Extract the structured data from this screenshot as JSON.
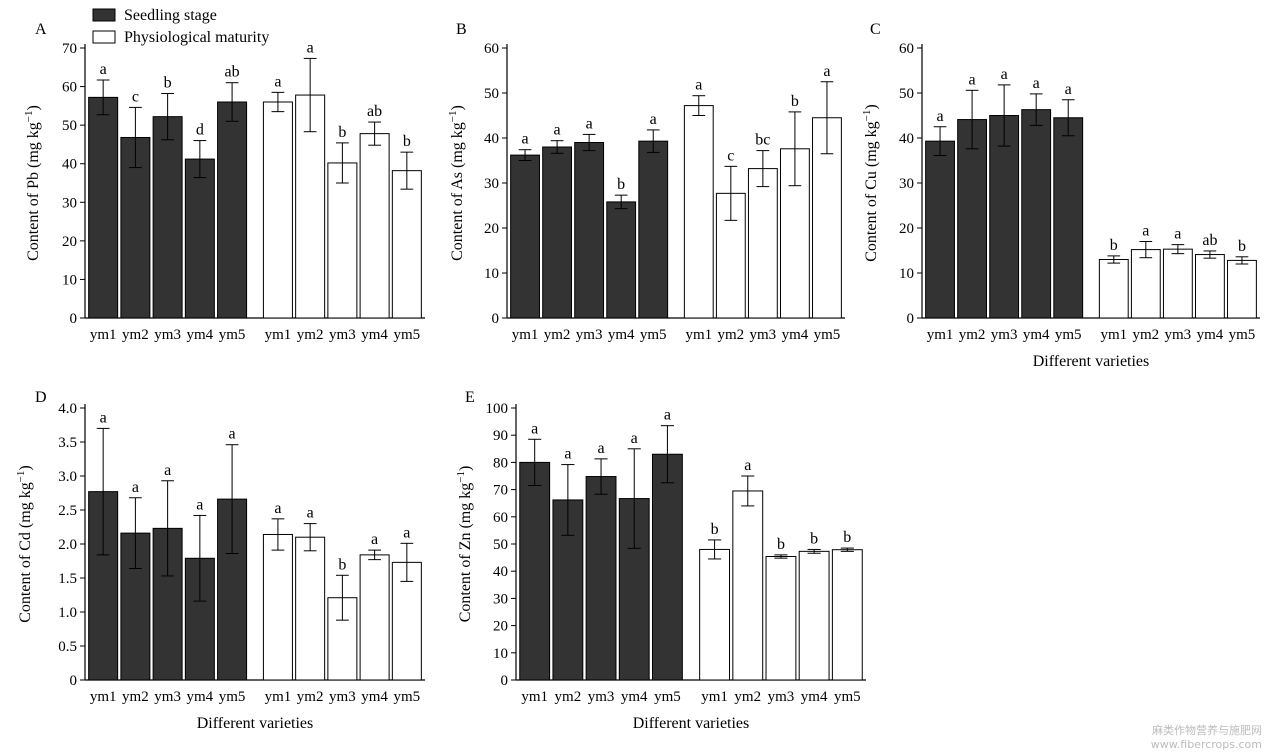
{
  "legend": {
    "items": [
      {
        "label": "Seedling stage",
        "color": "#333333"
      },
      {
        "label": "Physiological maturity",
        "color": "#ffffff"
      }
    ],
    "placement": "top-left"
  },
  "watermark": {
    "line1": "麻类作物营养与施肥网",
    "line2": "www.fibercrops.com"
  },
  "chart_data": [
    {
      "type": "bar",
      "panel_label": "A",
      "categories": [
        "ym1",
        "ym2",
        "ym3",
        "ym4",
        "ym5"
      ],
      "ylabel_prefix": "Content of  Pb (mg kg",
      "ylabel_sup": "−1",
      "ylabel_suffix": ")",
      "xlabel": "",
      "ylim": [
        0,
        70
      ],
      "yticks": [
        0,
        10,
        20,
        30,
        40,
        50,
        60,
        70
      ],
      "series": [
        {
          "name": "Seedling stage",
          "values": [
            57.2,
            46.8,
            52.2,
            41.2,
            56.0
          ],
          "errors": [
            4.5,
            7.8,
            6.0,
            4.8,
            5.0
          ],
          "letters": [
            "a",
            "c",
            "b",
            "d",
            "ab"
          ]
        },
        {
          "name": "Physiological maturity",
          "values": [
            56.0,
            57.8,
            40.2,
            47.8,
            38.2
          ],
          "errors": [
            2.5,
            9.5,
            5.2,
            3.0,
            4.8
          ],
          "letters": [
            "a",
            "a",
            "b",
            "ab",
            "b"
          ]
        }
      ]
    },
    {
      "type": "bar",
      "panel_label": "B",
      "categories": [
        "ym1",
        "ym2",
        "ym3",
        "ym4",
        "ym5"
      ],
      "ylabel_prefix": "Content of As (mg kg",
      "ylabel_sup": "−1",
      "ylabel_suffix": ")",
      "xlabel": "",
      "ylim": [
        0,
        60
      ],
      "yticks": [
        0,
        10,
        20,
        30,
        40,
        50,
        60
      ],
      "series": [
        {
          "name": "Seedling stage",
          "values": [
            36.2,
            38.0,
            39.0,
            25.8,
            39.3
          ],
          "errors": [
            1.2,
            1.4,
            1.8,
            1.5,
            2.5
          ],
          "letters": [
            "a",
            "a",
            "a",
            "b",
            "a"
          ]
        },
        {
          "name": "Physiological maturity",
          "values": [
            47.2,
            27.7,
            33.2,
            37.6,
            44.5
          ],
          "errors": [
            2.2,
            6.0,
            4.0,
            8.2,
            8.0
          ],
          "letters": [
            "a",
            "c",
            "bc",
            "b",
            "a"
          ]
        }
      ]
    },
    {
      "type": "bar",
      "panel_label": "C",
      "categories": [
        "ym1",
        "ym2",
        "ym3",
        "ym4",
        "ym5"
      ],
      "ylabel_prefix": "Content of Cu (mg kg",
      "ylabel_sup": "−1",
      "ylabel_suffix": ")",
      "xlabel": "Different varieties",
      "ylim": [
        0,
        60
      ],
      "yticks": [
        0,
        10,
        20,
        30,
        40,
        50,
        60
      ],
      "series": [
        {
          "name": "Seedling stage",
          "values": [
            39.3,
            44.1,
            45.0,
            46.3,
            44.5
          ],
          "errors": [
            3.2,
            6.5,
            6.8,
            3.5,
            4.0
          ],
          "letters": [
            "a",
            "a",
            "a",
            "a",
            "a"
          ]
        },
        {
          "name": "Physiological maturity",
          "values": [
            13.0,
            15.2,
            15.3,
            14.1,
            12.8
          ],
          "errors": [
            0.8,
            1.8,
            1.0,
            0.8,
            0.8
          ],
          "letters": [
            "b",
            "a",
            "a",
            "ab",
            "b"
          ]
        }
      ]
    },
    {
      "type": "bar",
      "panel_label": "D",
      "categories": [
        "ym1",
        "ym2",
        "ym3",
        "ym4",
        "ym5"
      ],
      "ylabel_prefix": "Content of Cd (mg kg",
      "ylabel_sup": "−1",
      "ylabel_suffix": ")",
      "xlabel": "Different varieties",
      "ylim": [
        0,
        4.0
      ],
      "yticks": [
        "0",
        "0.5",
        "1.0",
        "1.5",
        "2.0",
        "2.5",
        "3.0",
        "3.5",
        "4.0"
      ],
      "series": [
        {
          "name": "Seedling stage",
          "values": [
            2.77,
            2.16,
            2.23,
            1.79,
            2.66
          ],
          "errors": [
            0.93,
            0.52,
            0.7,
            0.63,
            0.8
          ],
          "letters": [
            "a",
            "a",
            "a",
            "a",
            "a"
          ]
        },
        {
          "name": "Physiological maturity",
          "values": [
            2.14,
            2.1,
            1.21,
            1.84,
            1.73
          ],
          "errors": [
            0.23,
            0.2,
            0.33,
            0.07,
            0.28
          ],
          "letters": [
            "a",
            "a",
            "b",
            "a",
            "a"
          ]
        }
      ]
    },
    {
      "type": "bar",
      "panel_label": "E",
      "categories": [
        "ym1",
        "ym2",
        "ym3",
        "ym4",
        "ym5"
      ],
      "ylabel_prefix": "Content of Zn (mg kg",
      "ylabel_sup": "−1",
      "ylabel_suffix": ")",
      "xlabel": "Different varieties",
      "ylim": [
        0,
        100
      ],
      "yticks": [
        0,
        10,
        20,
        30,
        40,
        50,
        60,
        70,
        80,
        90,
        100
      ],
      "series": [
        {
          "name": "Seedling stage",
          "values": [
            80.0,
            66.2,
            74.8,
            66.7,
            83.0
          ],
          "errors": [
            8.5,
            13.0,
            6.5,
            18.3,
            10.5
          ],
          "letters": [
            "a",
            "a",
            "a",
            "a",
            "a"
          ]
        },
        {
          "name": "Physiological maturity",
          "values": [
            48.0,
            69.5,
            45.4,
            47.3,
            47.9
          ],
          "errors": [
            3.5,
            5.5,
            0.6,
            0.7,
            0.6
          ],
          "letters": [
            "b",
            "a",
            "b",
            "b",
            "b"
          ]
        }
      ]
    }
  ]
}
